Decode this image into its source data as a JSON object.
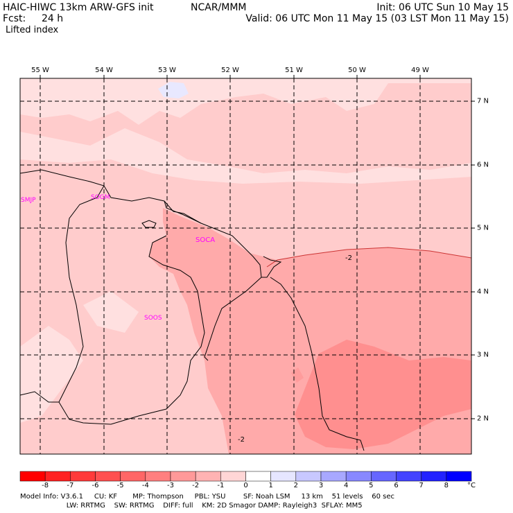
{
  "header": {
    "title": "HAIC-HIWC 13km ARW-GFS init",
    "org": "NCAR/MMM",
    "init": "Init: 06 UTC Sun 10 May 15",
    "fcst_label": "Fcst:",
    "fcst_value": "24 h",
    "valid": "Valid: 06 UTC Mon 11 May 15 (03 LST Mon 11 May 15)",
    "field": "Lifted index"
  },
  "map": {
    "lon_labels": [
      "55 W",
      "54 W",
      "53 W",
      "52 W",
      "51 W",
      "50 W",
      "49 W"
    ],
    "lat_labels": [
      "7 N",
      "6 N",
      "5 N",
      "4 N",
      "3 N",
      "2 N"
    ],
    "stations": [
      "SMJP",
      "SOGM",
      "SOCA",
      "SOOS"
    ],
    "contour_labels": [
      "-2",
      "-2"
    ],
    "colors": {
      "coast": "#000000",
      "grid": "#000000",
      "station": "#ff00ff",
      "fill_m1_0": "#ffe0e0",
      "fill_m2_m1": "#ffcccc",
      "fill_m3_m2": "#ffaaaa",
      "fill_m4_m3": "#ff8888",
      "fill_0_1": "#fff0f0",
      "fill_1_2": "#e8e8ff"
    }
  },
  "colorbar": {
    "labels": [
      "-8",
      "-7",
      "-6",
      "-5",
      "-4",
      "-3",
      "-2",
      "-1",
      "0",
      "1",
      "2",
      "3",
      "4",
      "5",
      "6",
      "7",
      "8"
    ],
    "unit": "°C",
    "colors": [
      "#ff0000",
      "#ff2222",
      "#ff3a3a",
      "#ff5050",
      "#ff6666",
      "#ff7f7f",
      "#ff9999",
      "#ffb3b3",
      "#ffd6d6",
      "#ffffff",
      "#e6e6ff",
      "#c8c8ff",
      "#a8a8ff",
      "#8888ff",
      "#6666ff",
      "#4444ff",
      "#2222ff",
      "#0000ff"
    ]
  },
  "footer": {
    "line1": "Model Info: V3.6.1     CU: KF       MP: Thompson     PBL: YSU        SF: Noah LSM     13 km    51 levels    60 sec",
    "line2": "                     LW: RRTMG    SW: RRTMG    DIFF: full    KM: 2D Smagor DAMP: Rayleigh3  SFLAY: MM5"
  }
}
